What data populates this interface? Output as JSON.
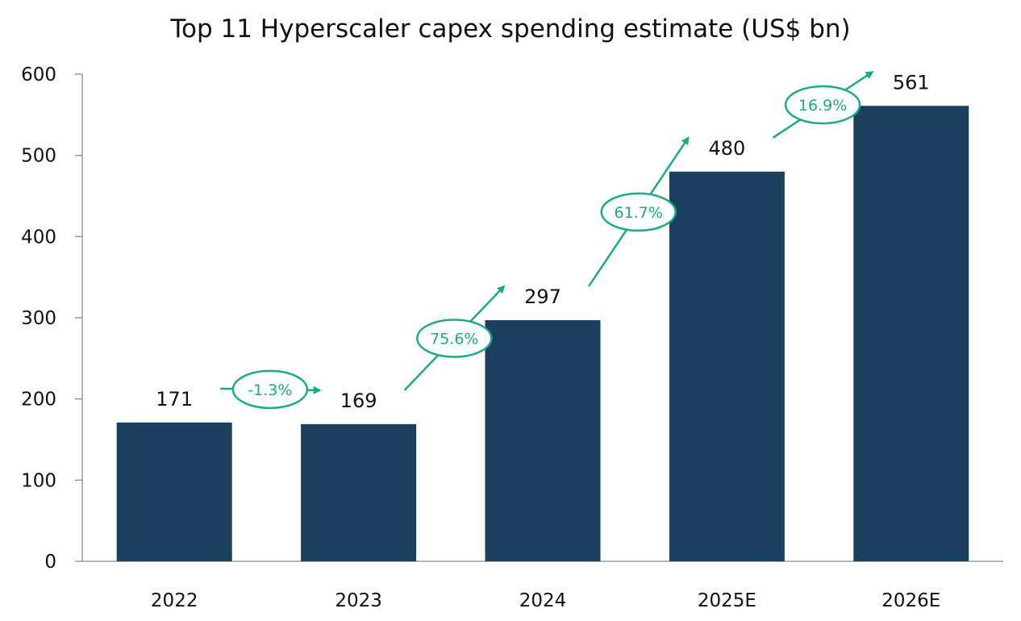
{
  "chart_data": {
    "type": "bar",
    "title": "Top 11 Hyperscaler capex spending estimate (US$ bn)",
    "xlabel": "",
    "ylabel": "",
    "categories": [
      "2022",
      "2023",
      "2024",
      "2025E",
      "2026E"
    ],
    "values": [
      171,
      169,
      297,
      480,
      561
    ],
    "data_labels": [
      "171",
      "169",
      "297",
      "480",
      "561"
    ],
    "ylim": [
      0,
      600
    ],
    "yticks": [
      0,
      100,
      200,
      300,
      400,
      500,
      600
    ],
    "grid": false,
    "legend": "none",
    "bar_color": "#1b3f5e",
    "growth_annotations": [
      {
        "from": "2022",
        "to": "2023",
        "label": "-1.3%"
      },
      {
        "from": "2023",
        "to": "2024",
        "label": "75.6%"
      },
      {
        "from": "2024",
        "to": "2025E",
        "label": "61.7%"
      },
      {
        "from": "2025E",
        "to": "2026E",
        "label": "16.9%"
      }
    ],
    "annotation_color": "#1aaa8a"
  }
}
